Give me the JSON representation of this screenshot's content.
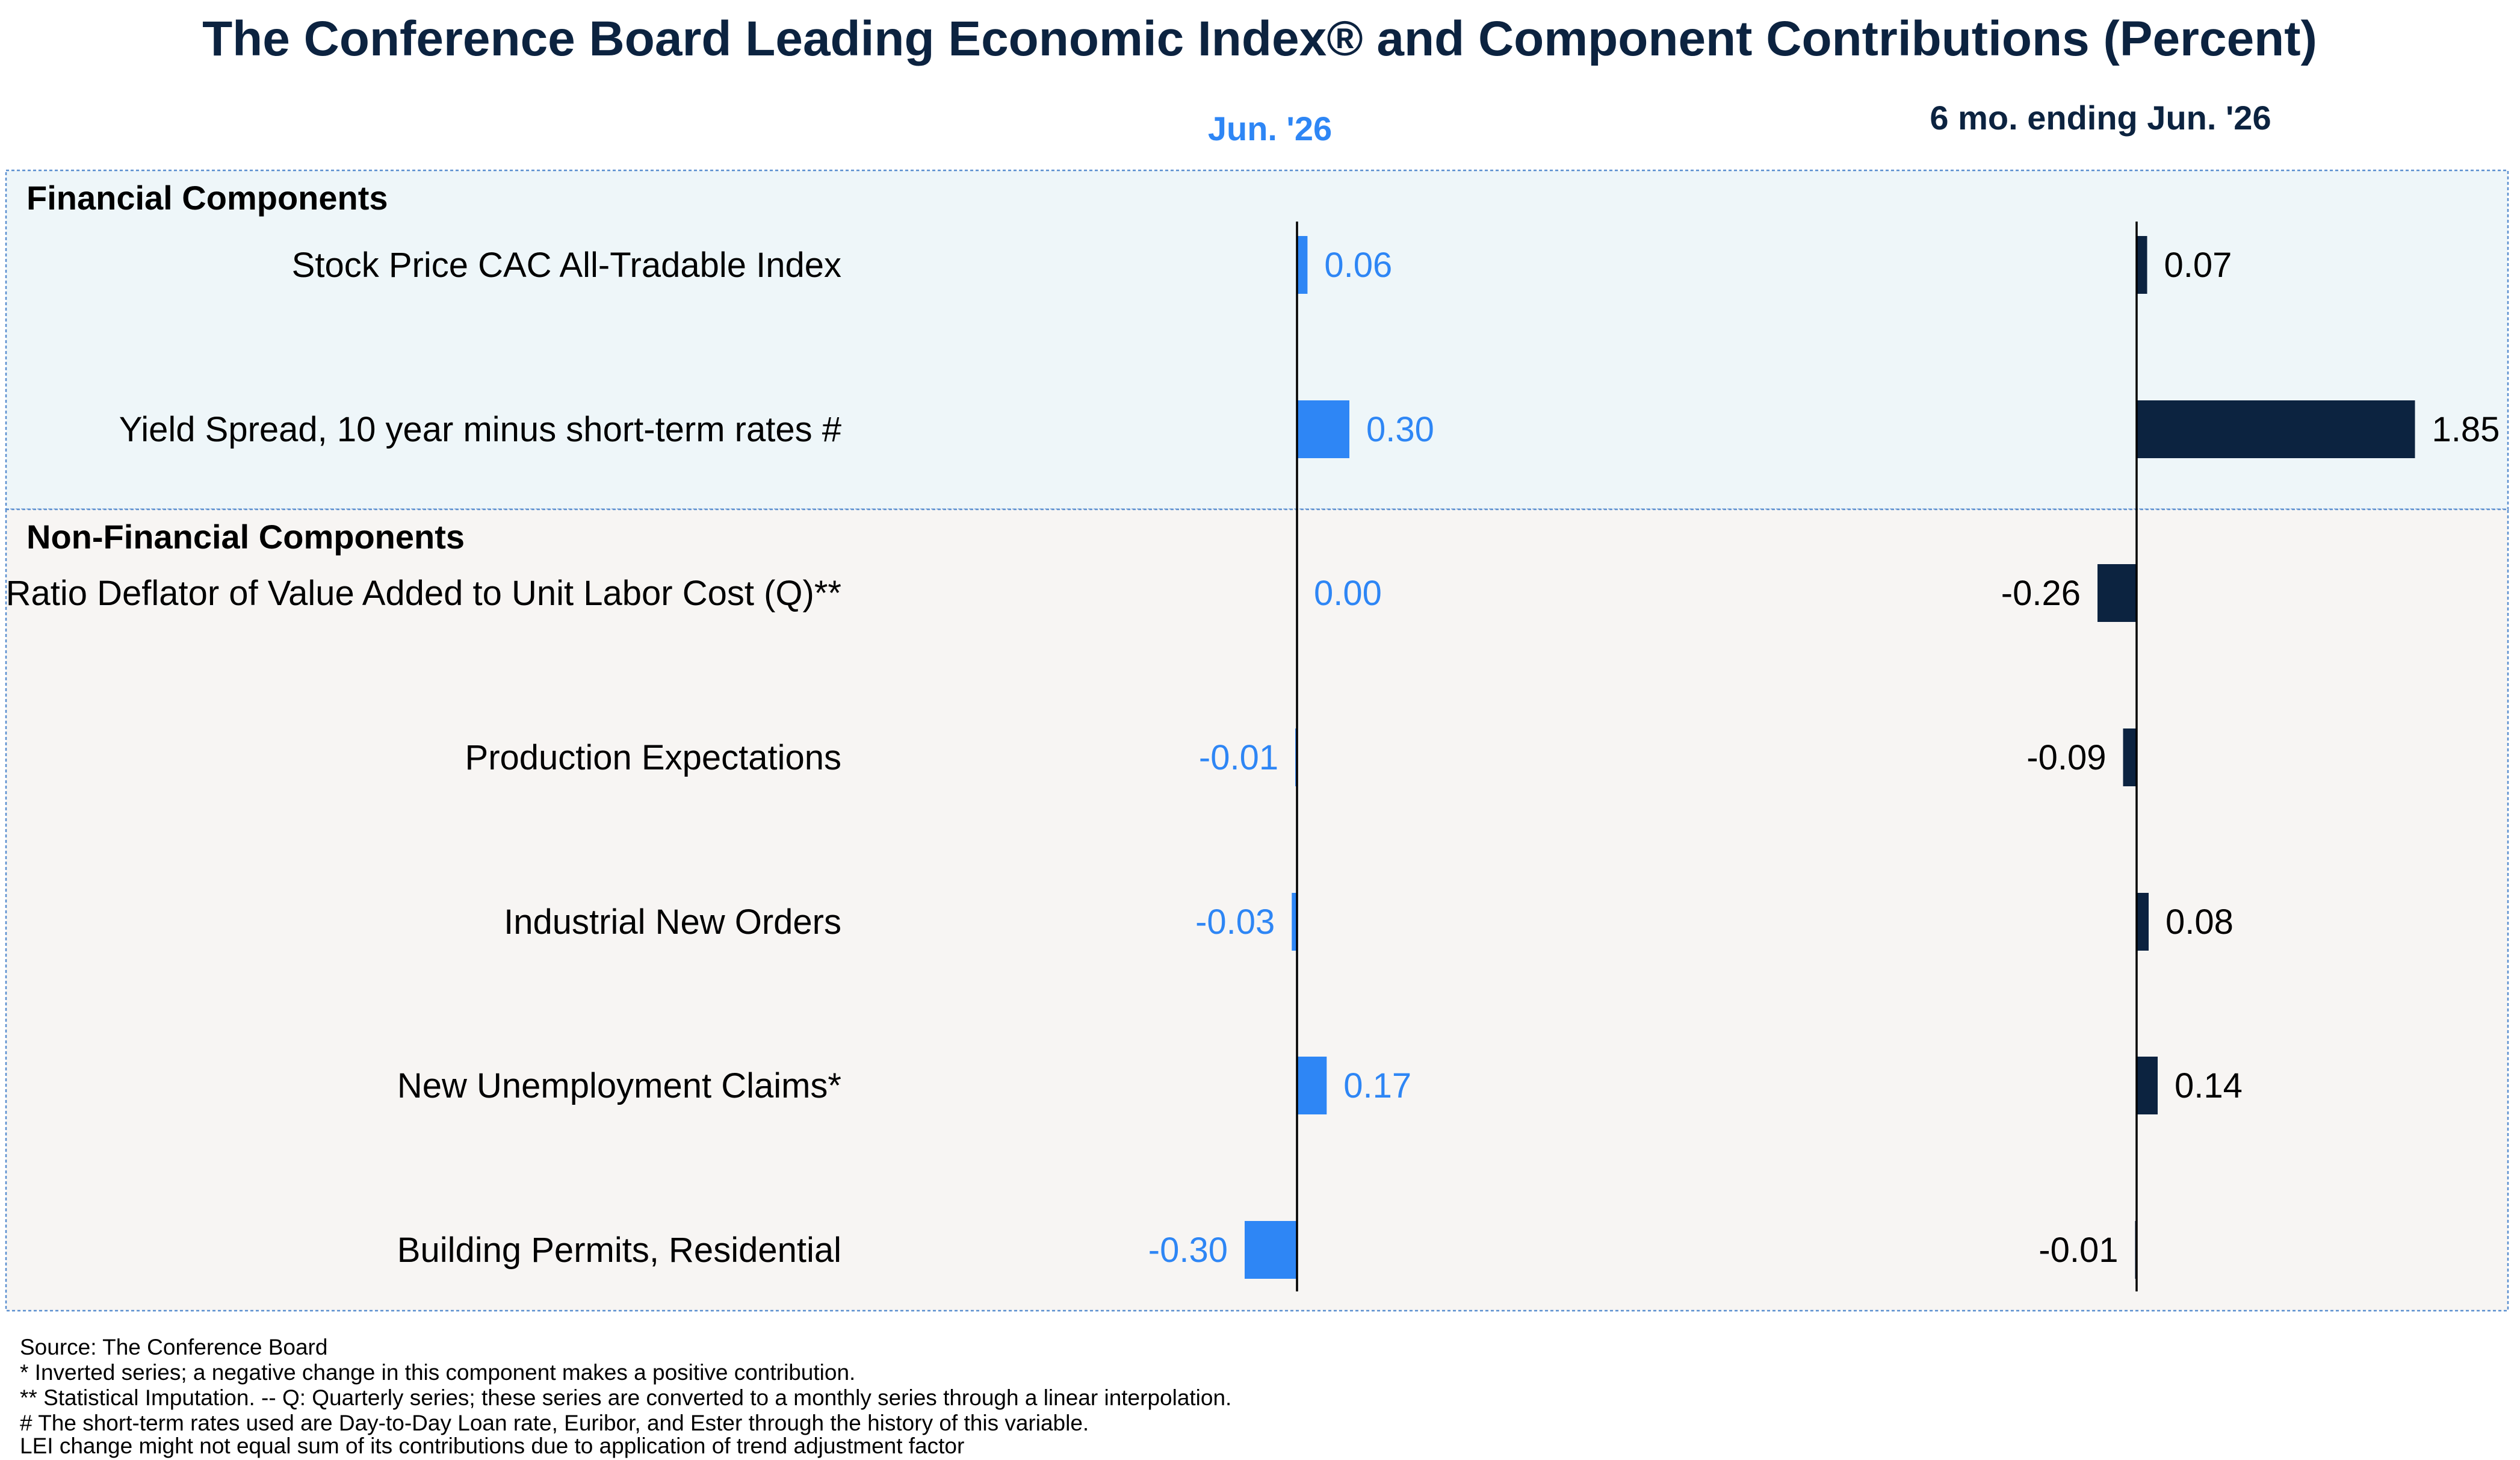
{
  "chart_data": {
    "type": "bar",
    "title": "The Conference Board Leading Economic Index® and Component Contributions (Percent)",
    "orientation": "horizontal",
    "columns": [
      {
        "header": "Jun. '26",
        "color": "#2e86f5",
        "label_color": "#2e86f5"
      },
      {
        "header": "6 mo. ending Jun. '26",
        "color": "#0c2340",
        "label_color": "#000000"
      }
    ],
    "sections": [
      {
        "name": "Financial Components",
        "background": "#eef6f9",
        "rows": [
          {
            "label": "Stock Price CAC All-Tradable Index",
            "values": [
              0.06,
              0.07
            ],
            "value_labels": [
              "0.06",
              "0.07"
            ]
          },
          {
            "label": "Yield Spread, 10 year minus short-term rates #",
            "values": [
              0.3,
              1.85
            ],
            "value_labels": [
              "0.30",
              "1.85"
            ]
          }
        ]
      },
      {
        "name": "Non-Financial Components",
        "background": "#f7f5f3",
        "rows": [
          {
            "label": "Ratio Deflator of Value Added to Unit Labor Cost (Q)**",
            "values": [
              0.0,
              -0.26
            ],
            "value_labels": [
              "0.00",
              "-0.26"
            ]
          },
          {
            "label": "Production Expectations",
            "values": [
              -0.01,
              -0.09
            ],
            "value_labels": [
              "-0.01",
              "-0.09"
            ]
          },
          {
            "label": "Industrial New Orders",
            "values": [
              -0.03,
              0.08
            ],
            "value_labels": [
              "-0.03",
              "0.08"
            ]
          },
          {
            "label": "New Unemployment Claims*",
            "values": [
              0.17,
              0.14
            ],
            "value_labels": [
              "0.17",
              "0.14"
            ]
          },
          {
            "label": "Building Permits, Residential",
            "values": [
              -0.3,
              -0.01
            ],
            "value_labels": [
              "-0.30",
              "-0.01"
            ]
          }
        ]
      }
    ]
  },
  "footnotes": [
    "Source: The Conference Board",
    "*  Inverted series; a negative change in this component makes a positive contribution.",
    "**  Statistical Imputation. -- Q: Quarterly series; these series are converted to a monthly series through a linear interpolation.",
    "# The short-term rates used are Day-to-Day Loan rate, Euribor, and Ester through the history of this variable.",
    "LEI change might not equal sum of its contributions due to application of trend adjustment factor"
  ]
}
